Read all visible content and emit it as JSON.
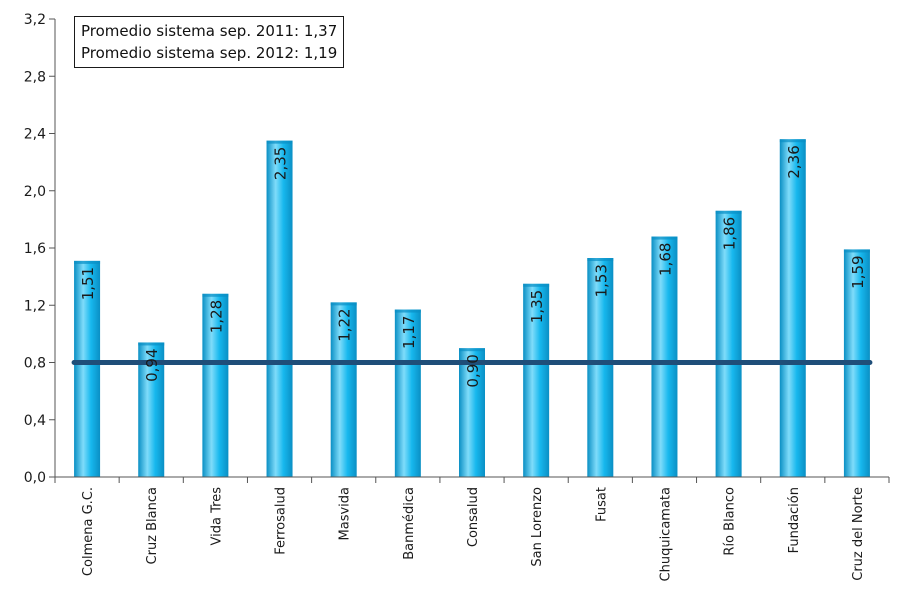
{
  "annotation": {
    "line1": "Promedio sistema sep. 2011: 1,37",
    "line2": "Promedio sistema sep. 2012: 1,19"
  },
  "colors": {
    "bar": "#17B8EE",
    "bar_light": "#7FDCFA",
    "bar_dark": "#0A8FC4",
    "reference_line": "#1F4E79",
    "axis": "#555555"
  },
  "chart_data": {
    "type": "bar",
    "categories": [
      "Colmena G.C.",
      "Cruz Blanca",
      "Vida Tres",
      "Ferrosalud",
      "Masvida",
      "Banmédica",
      "Consalud",
      "San Lorenzo",
      "Fusat",
      "Chuquicamata",
      "Río Blanco",
      "Fundación",
      "Cruz del Norte"
    ],
    "values": [
      1.51,
      0.94,
      1.28,
      2.35,
      1.22,
      1.17,
      0.9,
      1.35,
      1.53,
      1.68,
      1.86,
      2.36,
      1.59
    ],
    "value_labels": [
      "1,51",
      "0,94",
      "1,28",
      "2,35",
      "1,22",
      "1,17",
      "0,90",
      "1,35",
      "1,53",
      "1,68",
      "1,86",
      "2,36",
      "1,59"
    ],
    "reference_line_value": 0.8,
    "ylim": [
      0,
      3.2
    ],
    "yticks": [
      0,
      0.4,
      0.8,
      1.2,
      1.6,
      2.0,
      2.4,
      2.8,
      3.2
    ],
    "ytick_labels": [
      "0,0",
      "0,4",
      "0,8",
      "1,2",
      "1,6",
      "2,0",
      "2,4",
      "2,8",
      "3,2"
    ],
    "grid": false,
    "title": "",
    "xlabel": "",
    "ylabel": ""
  }
}
